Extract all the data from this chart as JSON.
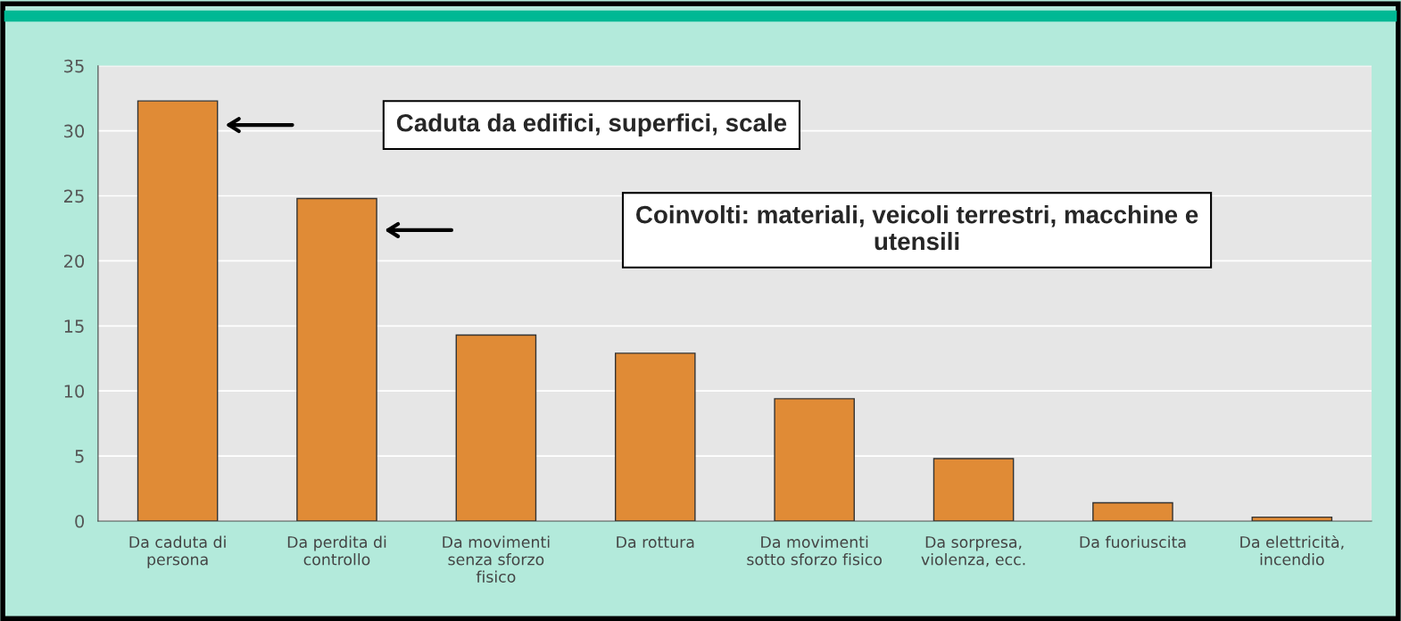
{
  "chart_data": {
    "type": "bar",
    "categories": [
      "Da caduta di\npersona",
      "Da perdita di\ncontrollo",
      "Da movimenti\nsenza sforzo\nfisico",
      "Da rottura",
      "Da movimenti\nsotto sforzo fisico",
      "Da sorpresa,\nviolenza, ecc.",
      "Da fuoriuscita",
      "Da elettricità,\nincendio"
    ],
    "values": [
      32.3,
      24.8,
      14.3,
      12.9,
      9.4,
      4.8,
      1.4,
      0.3
    ],
    "color": "#e08b36",
    "ylim": [
      0,
      35
    ],
    "yticks": [
      0,
      5,
      10,
      15,
      20,
      25,
      30,
      35
    ],
    "grid": "y",
    "annotations": [
      "Caduta da edifici, superfici, scale",
      "Coinvolti: materiali, veicoli terrestri, macchine e\nutensili"
    ]
  }
}
